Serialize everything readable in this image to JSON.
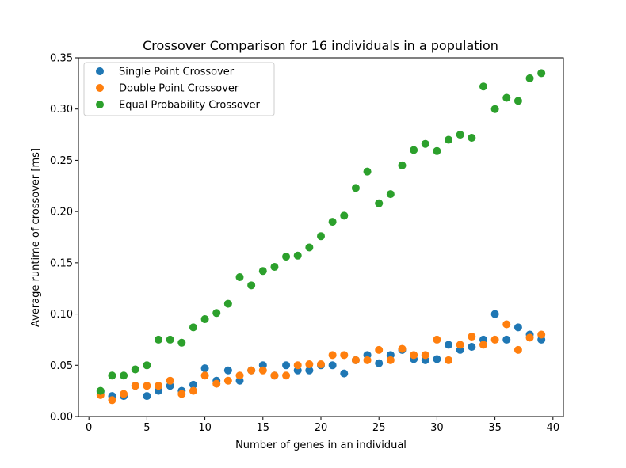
{
  "chart_data": {
    "type": "scatter",
    "title": "Crossover Comparison for 16 individuals in a population",
    "xlabel": "Number of genes in an individual",
    "ylabel": "Average runtime of crossover [ms]",
    "xlim": [
      -0.9,
      40.9
    ],
    "ylim": [
      0,
      0.35
    ],
    "xticks": [
      0,
      5,
      10,
      15,
      20,
      25,
      30,
      35,
      40
    ],
    "xtick_labels": [
      "0",
      "5",
      "10",
      "15",
      "20",
      "25",
      "30",
      "35",
      "40"
    ],
    "yticks": [
      0,
      0.05,
      0.1,
      0.15,
      0.2,
      0.25,
      0.3,
      0.35
    ],
    "ytick_labels": [
      "0.00",
      "0.05",
      "0.10",
      "0.15",
      "0.20",
      "0.25",
      "0.30",
      "0.35"
    ],
    "grid": false,
    "legend_position": "top-left",
    "x": [
      1,
      2,
      3,
      4,
      5,
      6,
      7,
      8,
      9,
      10,
      11,
      12,
      13,
      14,
      15,
      16,
      17,
      18,
      19,
      20,
      21,
      22,
      23,
      24,
      25,
      26,
      27,
      28,
      29,
      30,
      31,
      32,
      33,
      34,
      35,
      36,
      37,
      38,
      39
    ],
    "series": [
      {
        "name": "Single Point Crossover",
        "color": "#1f77b4",
        "values": [
          0.024,
          0.02,
          0.02,
          0.03,
          0.02,
          0.025,
          0.03,
          0.025,
          0.031,
          0.047,
          0.035,
          0.045,
          0.035,
          0.045,
          0.05,
          0.04,
          0.05,
          0.045,
          0.045,
          0.05,
          0.05,
          0.042,
          0.055,
          0.06,
          0.052,
          0.06,
          0.065,
          0.056,
          0.055,
          0.056,
          0.07,
          0.065,
          0.068,
          0.075,
          0.1,
          0.075,
          0.087,
          0.08,
          0.075
        ]
      },
      {
        "name": "Double Point Crossover",
        "color": "#ff7f0e",
        "values": [
          0.021,
          0.016,
          0.022,
          0.03,
          0.03,
          0.03,
          0.035,
          0.022,
          0.025,
          0.04,
          0.032,
          0.035,
          0.04,
          0.045,
          0.045,
          0.04,
          0.04,
          0.05,
          0.051,
          0.051,
          0.06,
          0.06,
          0.055,
          0.055,
          0.065,
          0.055,
          0.066,
          0.06,
          0.06,
          0.075,
          0.055,
          0.07,
          0.078,
          0.07,
          0.075,
          0.09,
          0.065,
          0.077,
          0.08
        ]
      },
      {
        "name": "Equal Probability Crossover",
        "color": "#2ca02c",
        "values": [
          0.025,
          0.04,
          0.04,
          0.046,
          0.05,
          0.075,
          0.075,
          0.072,
          0.087,
          0.095,
          0.101,
          0.11,
          0.136,
          0.128,
          0.142,
          0.146,
          0.156,
          0.157,
          0.165,
          0.176,
          0.19,
          0.196,
          0.223,
          0.239,
          0.208,
          0.217,
          0.245,
          0.26,
          0.266,
          0.259,
          0.27,
          0.275,
          0.272,
          0.322,
          0.3,
          0.311,
          0.308,
          0.33,
          0.335
        ]
      }
    ]
  }
}
